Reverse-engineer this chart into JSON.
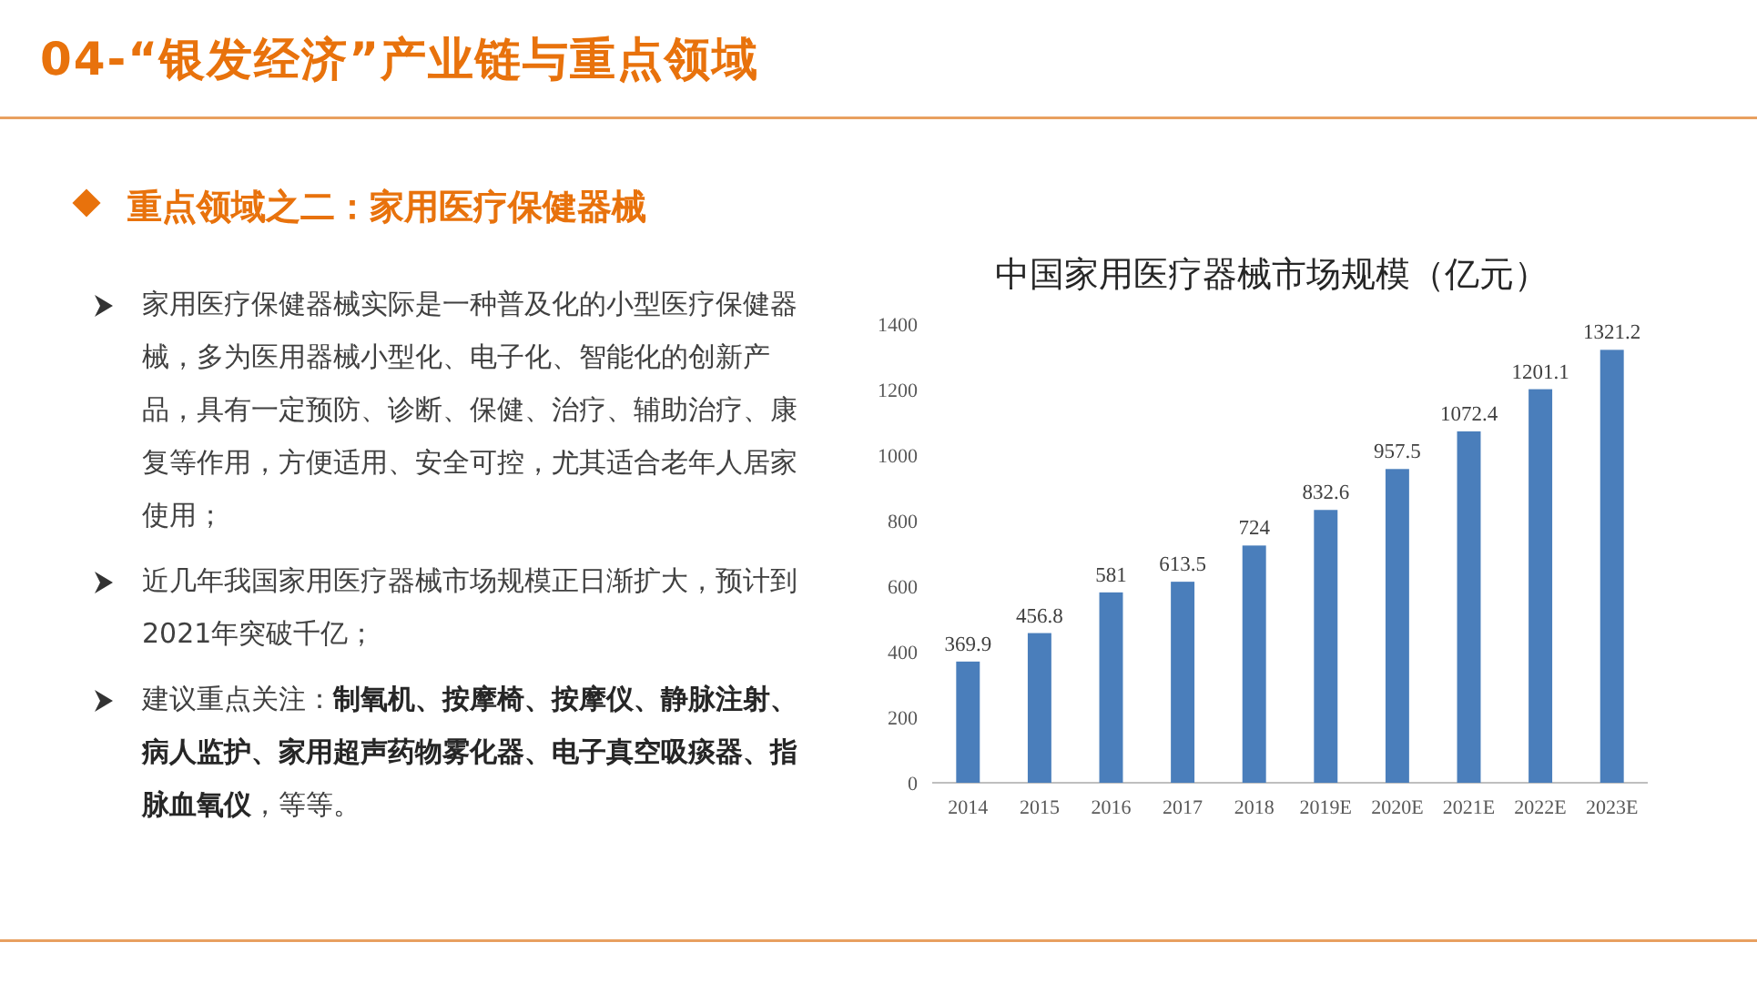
{
  "chart_data": {
    "type": "bar",
    "title": "中国家用医疗器械市场规模（亿元）",
    "categories": [
      "2014",
      "2015",
      "2016",
      "2017",
      "2018",
      "2019E",
      "2020E",
      "2021E",
      "2022E",
      "2023E"
    ],
    "values": [
      369.9,
      456.8,
      581,
      613.5,
      724,
      832.6,
      957.5,
      1072.4,
      1201.1,
      1321.2
    ],
    "color": "#4a7ebb",
    "ylim": [
      0,
      1400
    ],
    "yticks": [
      0,
      200,
      400,
      600,
      800,
      1000,
      1200,
      1400
    ],
    "data_labels": true,
    "annotations": [
      "04-“银发经济”产业链与重点领域",
      "重点领域之二：家用医疗保健器械",
      "家用医疗保健器械实际是一种普及化的小型医疗保健器械，多为医用器械小型化、电子化、智能化的创新产品，具有一定预防、诊断、保健、治疗、辅助治疗、康复等作用，方便适用、安全可控，尤其适合老年人居家使用；",
      "近几年我国家用医疗器械市场规模正日渐扩大，预计到2021年突破千亿；",
      "建议重点关注：**制氧机、按摩椅、按摩仪、静脉注射、病人监护、家用超声药物雾化器、电子真空吸痰器、指脉血氧仪**，等等。"
    ]
  }
}
